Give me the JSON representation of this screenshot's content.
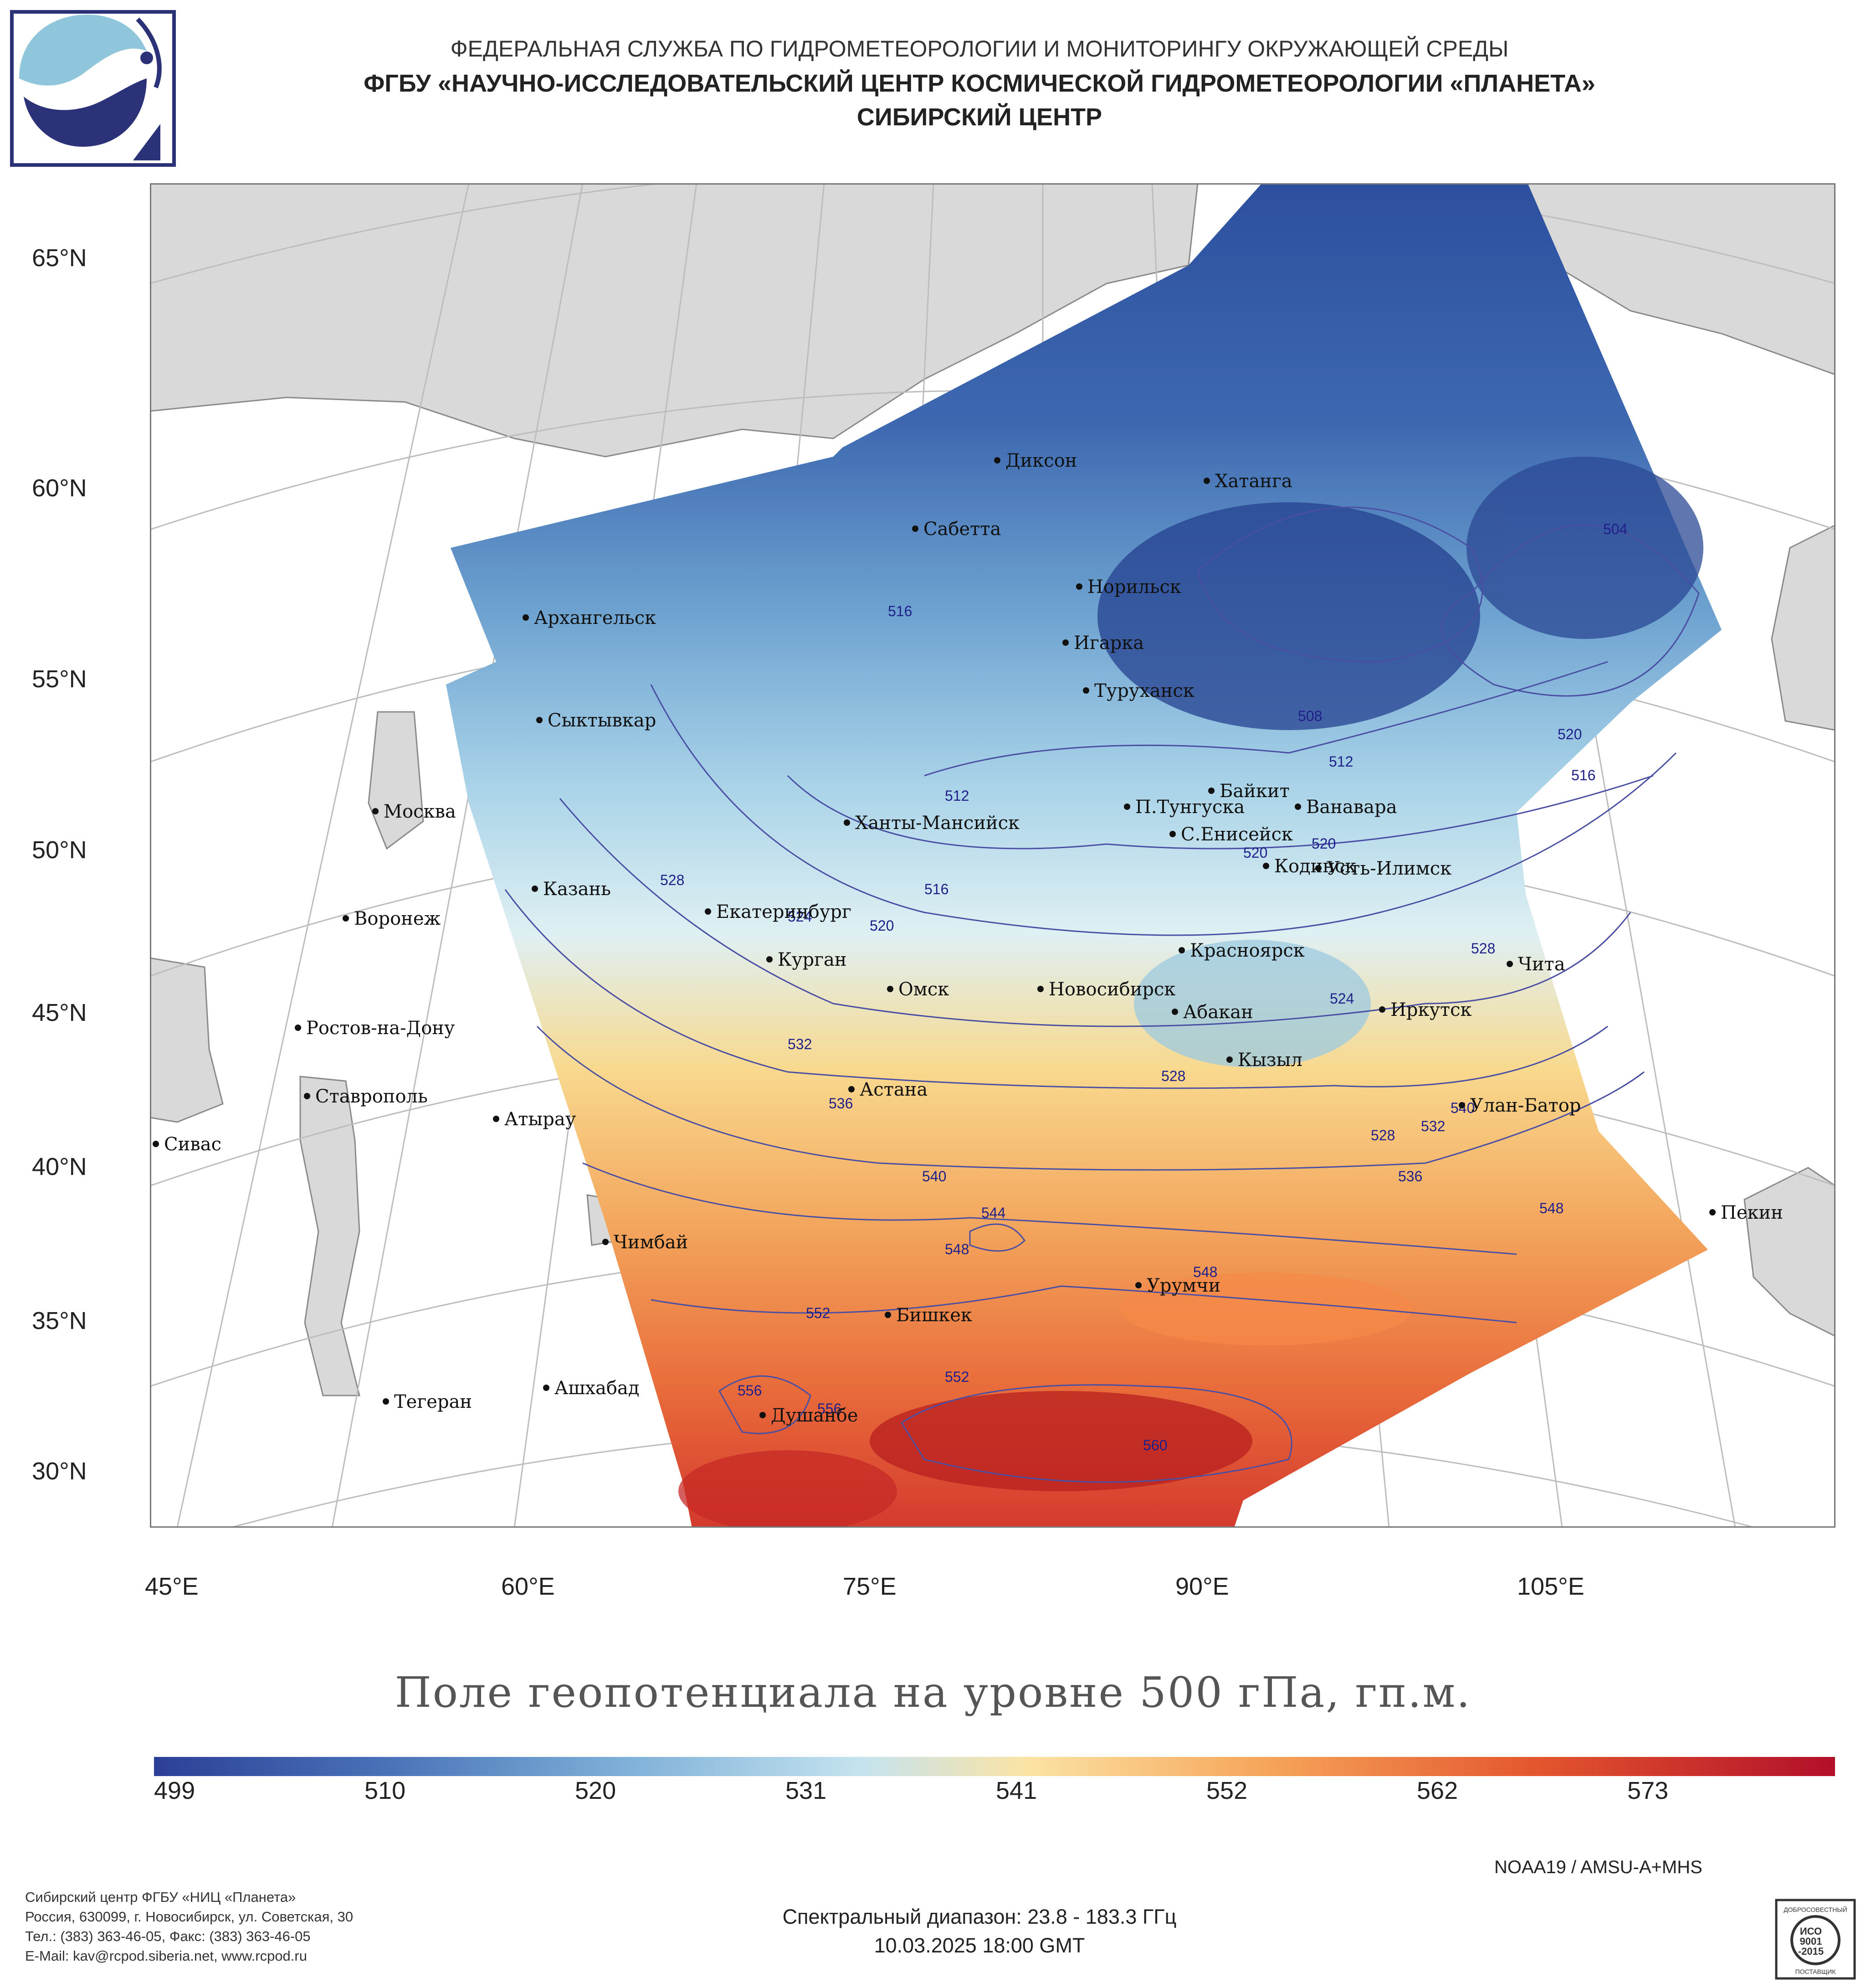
{
  "header": {
    "line1": "ФЕДЕРАЛЬНАЯ СЛУЖБА ПО ГИДРОМЕТЕОРОЛОГИИ И МОНИТОРИНГУ ОКРУЖАЮЩЕЙ СРЕДЫ",
    "line2": "ФГБУ «НАУЧНО-ИССЛЕДОВАТЕЛЬСКИЙ ЦЕНТР КОСМИЧЕСКОЙ ГИДРОМЕТЕОРОЛОГИИ «ПЛАНЕТА»",
    "line3": "СИБИРСКИЙ ЦЕНТР"
  },
  "axes": {
    "lat_labels": [
      "65°N",
      "60°N",
      "55°N",
      "50°N",
      "45°N",
      "40°N",
      "35°N",
      "30°N"
    ],
    "lon_labels": [
      "45°E",
      "60°E",
      "75°E",
      "90°E",
      "105°E"
    ]
  },
  "cities": [
    "Диксон",
    "Хатанга",
    "Сабетта",
    "Норильск",
    "Архангельск",
    "Игарка",
    "Туруханск",
    "Сыктывкар",
    "Байкит",
    "Москва",
    "П.Тунгуска",
    "Ванавара",
    "Ханты-Мансийск",
    "С.Енисейск",
    "Кодинск",
    "Усть-Илимск",
    "Казань",
    "Екатеринбург",
    "Воронеж",
    "Красноярск",
    "Курган",
    "Чита",
    "Омск",
    "Новосибирск",
    "Иркутск",
    "Ростов-на-Дону",
    "Абакан",
    "Кызыл",
    "Ставрополь",
    "Астана",
    "Улан-Батор",
    "Атырау",
    "Сивас",
    "Пекин",
    "Чимбай",
    "Урумчи",
    "Бишкек",
    "Ашхабад",
    "Душанбе",
    "Тегеран"
  ],
  "contours": [
    "504",
    "508",
    "512",
    "512",
    "516",
    "516",
    "516",
    "520",
    "520",
    "520",
    "520",
    "524",
    "524",
    "528",
    "528",
    "528",
    "528",
    "532",
    "532",
    "536",
    "536",
    "540",
    "540",
    "544",
    "548",
    "548",
    "548",
    "552",
    "552",
    "556",
    "556",
    "560"
  ],
  "title": "Поле геопотенциала на уровне 500 гПа, гп.м.",
  "colorbar": {
    "labels": [
      "499",
      "510",
      "520",
      "531",
      "541",
      "552",
      "562",
      "573"
    ],
    "colors": [
      "#2c3f97",
      "#4a73b8",
      "#7fb0d8",
      "#c4e3ef",
      "#fbe3a4",
      "#f6a65a",
      "#e4572e",
      "#b30f2a"
    ]
  },
  "satellite": "NOAA19 / AMSU-A+MHS",
  "footer": {
    "org1": "Сибирский центр ФГБУ «НИЦ «Планета»",
    "org2": "Россия, 630099, г. Новосибирск, ул. Советская, 30",
    "org3": "Тел.: (383) 363-46-05, Факс: (383) 363-46-05",
    "org4": "E-Mail: kav@rcpod.siberia.net, www.rcpod.ru",
    "spectral": "Спектральный диапазон: 23.8 - 183.3 ГГц",
    "datetime": "10.03.2025 18:00 GMT",
    "iso_top": "ДОБРОСОВЕСТНЫЙ",
    "iso_mid1": "ИСО",
    "iso_mid2": "9001",
    "iso_mid3": "-2015",
    "iso_bot": "ПОСТАВЩИК"
  }
}
